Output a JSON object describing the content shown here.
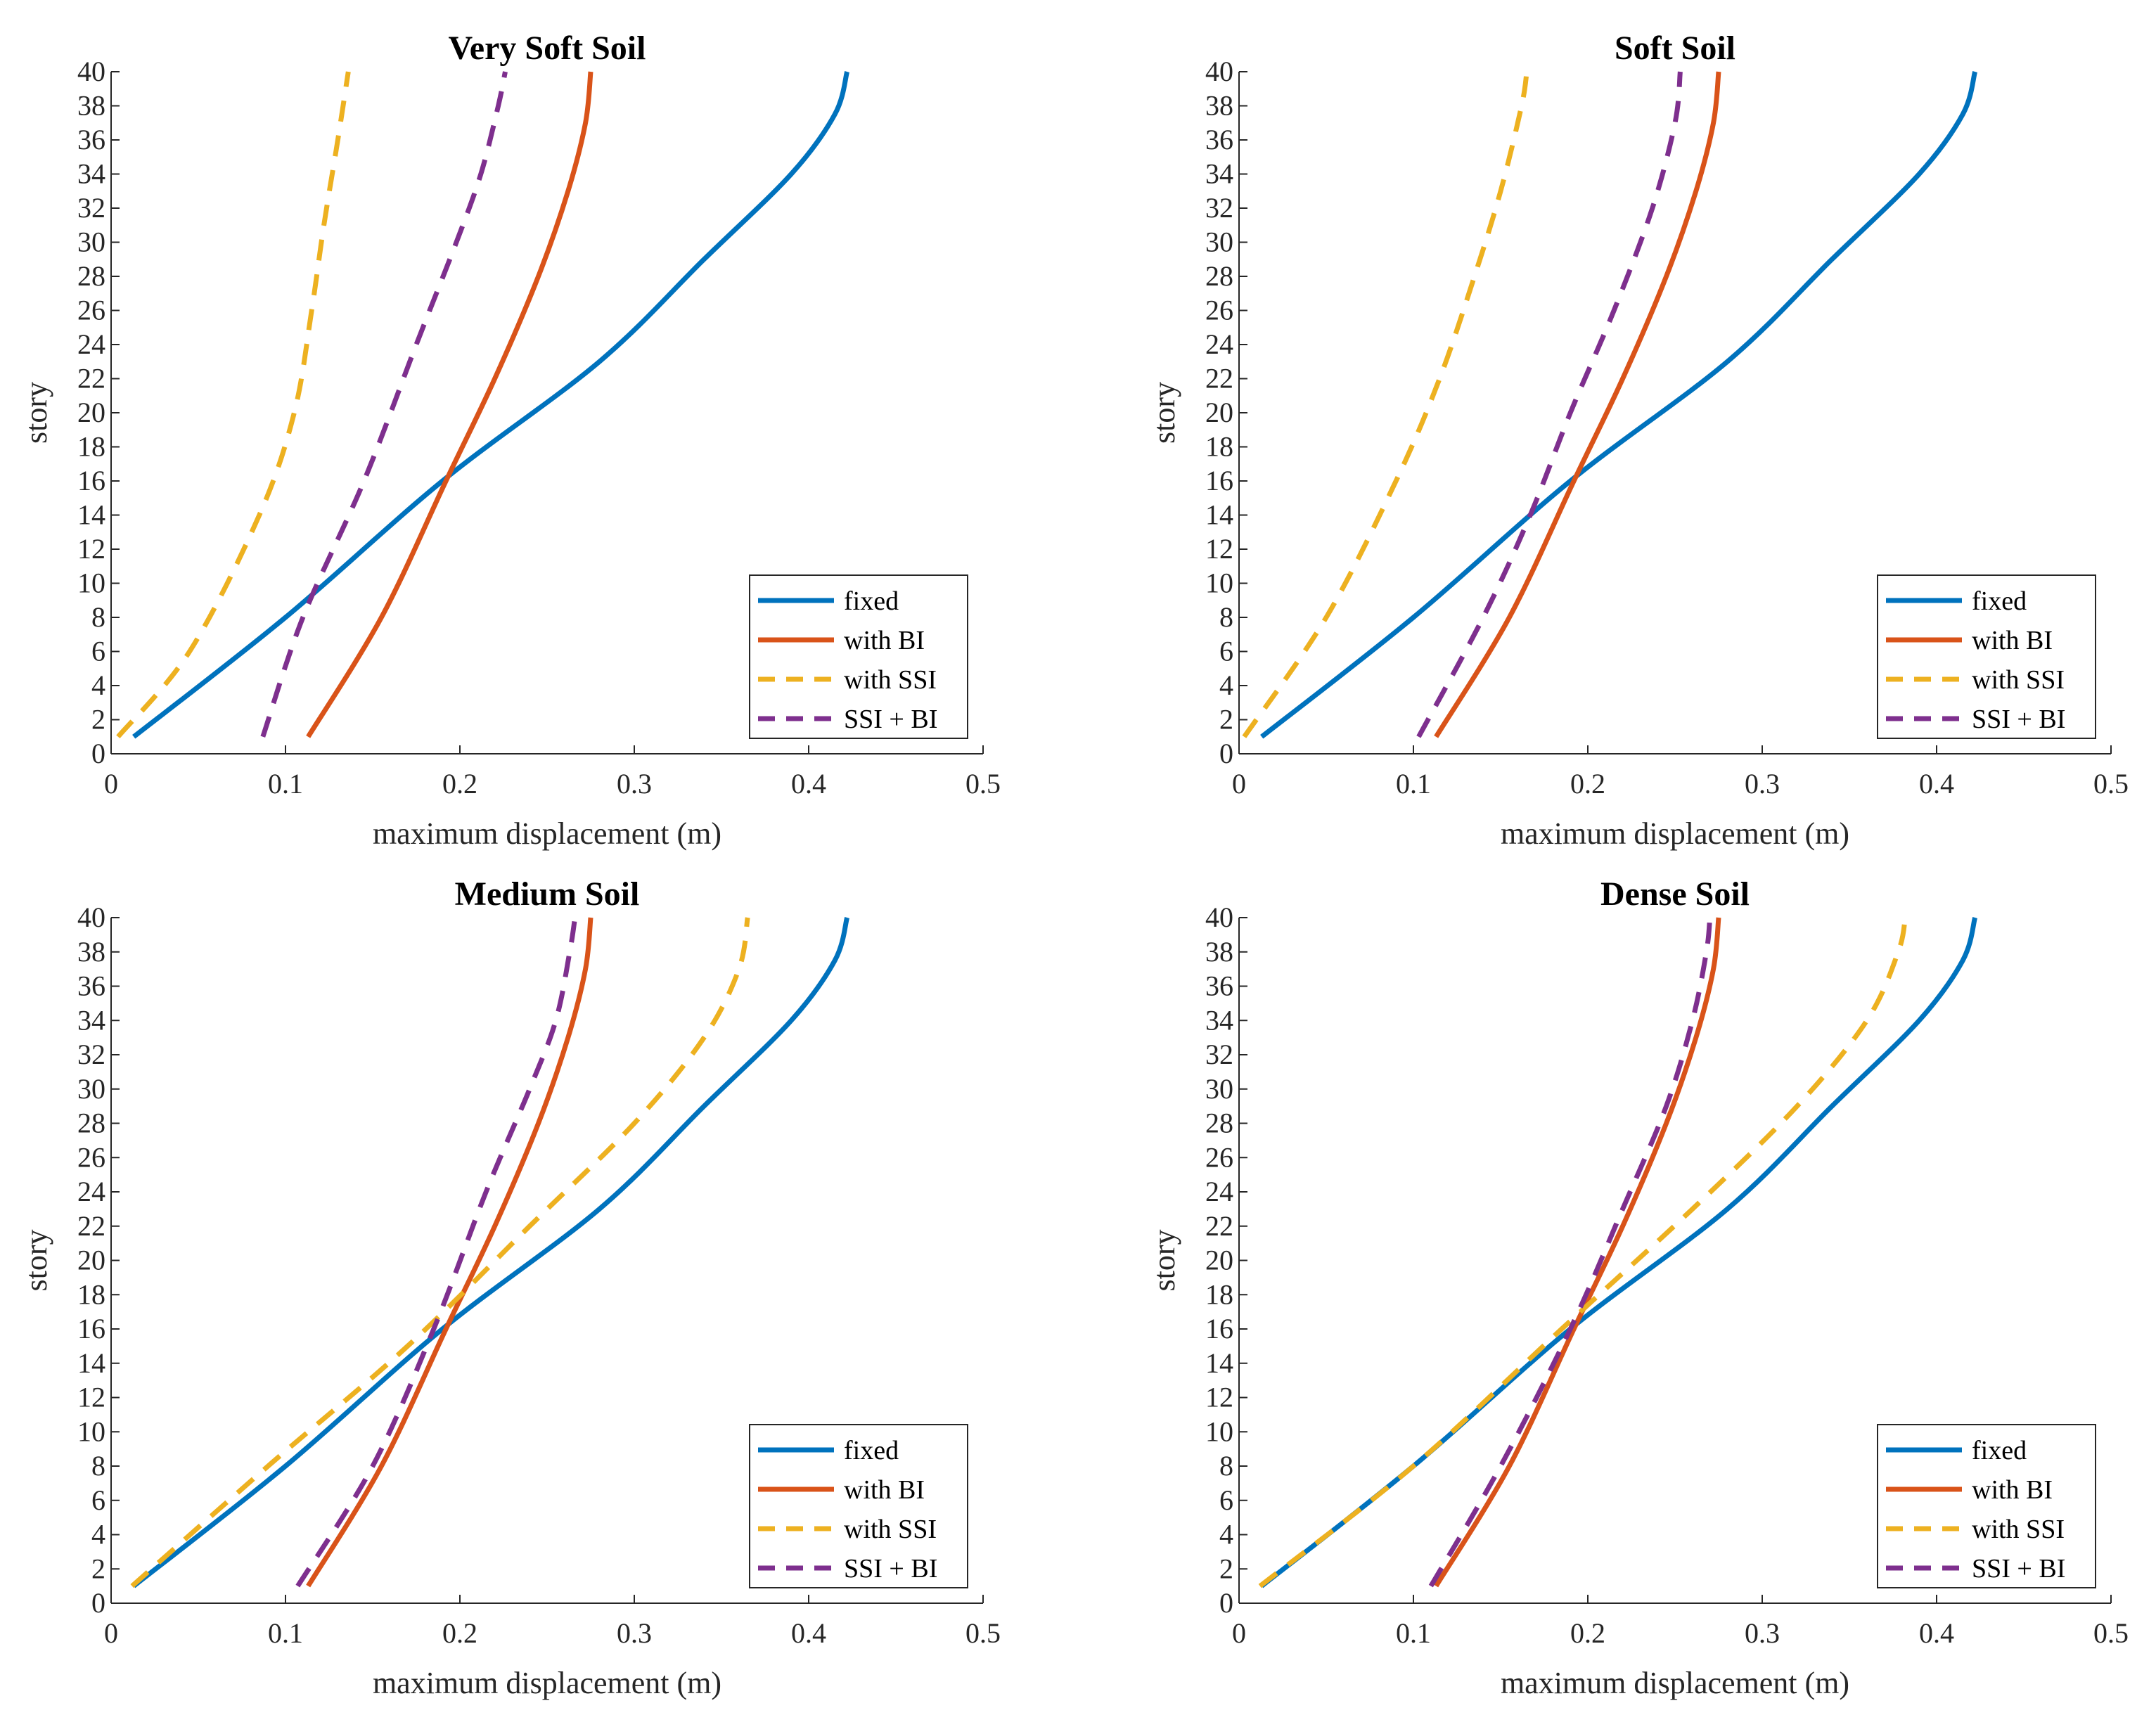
{
  "chart_data": [
    {
      "type": "line",
      "title": "Very Soft Soil",
      "xlabel": "maximum displacement (m)",
      "ylabel": "story",
      "xlim": [
        0,
        0.5
      ],
      "ylim": [
        0,
        40
      ],
      "xticks": [
        0,
        0.1,
        0.2,
        0.3,
        0.4,
        0.5
      ],
      "xtick_labels": [
        "0",
        "0.1",
        "0.2",
        "0.3",
        "0.4",
        "0.5"
      ],
      "yticks": [
        0,
        2,
        4,
        6,
        8,
        10,
        12,
        14,
        16,
        18,
        20,
        22,
        24,
        26,
        28,
        30,
        32,
        34,
        36,
        38,
        40
      ],
      "ytick_labels": [
        "0",
        "2",
        "4",
        "6",
        "8",
        "10",
        "12",
        "14",
        "16",
        "18",
        "20",
        "22",
        "24",
        "26",
        "28",
        "30",
        "32",
        "34",
        "36",
        "38",
        "40"
      ],
      "legend_position": "bottom-right",
      "series": [
        {
          "name": "fixed",
          "style": "solid",
          "color": "#0072BD",
          "x": [
            0.013,
            0.1,
            0.19,
            0.28,
            0.34,
            0.39,
            0.415,
            0.422
          ],
          "y": [
            1,
            8,
            16,
            23,
            29,
            34,
            37.5,
            40
          ]
        },
        {
          "name": "with BI",
          "style": "solid",
          "color": "#D95319",
          "x": [
            0.113,
            0.155,
            0.192,
            0.22,
            0.245,
            0.262,
            0.272,
            0.275
          ],
          "y": [
            1,
            8,
            16,
            22,
            28,
            33,
            37,
            40
          ]
        },
        {
          "name": "with SSI",
          "style": "dashed",
          "color": "#EDB120",
          "x": [
            0.004,
            0.045,
            0.085,
            0.105,
            0.115,
            0.122,
            0.13,
            0.136
          ],
          "y": [
            1,
            6,
            14,
            20,
            26,
            31,
            36,
            40
          ]
        },
        {
          "name": "SSI + BI",
          "style": "dashed",
          "color": "#7E2F8E",
          "x": [
            0.087,
            0.11,
            0.145,
            0.175,
            0.198,
            0.212,
            0.222,
            0.226
          ],
          "y": [
            1,
            8,
            16,
            24,
            30,
            34,
            38,
            40
          ]
        }
      ]
    },
    {
      "type": "line",
      "title": "Soft Soil",
      "xlabel": "maximum displacement (m)",
      "ylabel": "story",
      "xlim": [
        0,
        0.5
      ],
      "ylim": [
        0,
        40
      ],
      "xticks": [
        0,
        0.1,
        0.2,
        0.3,
        0.4,
        0.5
      ],
      "xtick_labels": [
        "0",
        "0.1",
        "0.2",
        "0.3",
        "0.4",
        "0.5"
      ],
      "yticks": [
        0,
        2,
        4,
        6,
        8,
        10,
        12,
        14,
        16,
        18,
        20,
        22,
        24,
        26,
        28,
        30,
        32,
        34,
        36,
        38,
        40
      ],
      "ytick_labels": [
        "0",
        "2",
        "4",
        "6",
        "8",
        "10",
        "12",
        "14",
        "16",
        "18",
        "20",
        "22",
        "24",
        "26",
        "28",
        "30",
        "32",
        "34",
        "36",
        "38",
        "40"
      ],
      "legend_position": "bottom-right",
      "series": [
        {
          "name": "fixed",
          "style": "solid",
          "color": "#0072BD",
          "x": [
            0.013,
            0.1,
            0.19,
            0.28,
            0.34,
            0.39,
            0.415,
            0.422
          ],
          "y": [
            1,
            8,
            16,
            23,
            29,
            34,
            37.5,
            40
          ]
        },
        {
          "name": "with BI",
          "style": "solid",
          "color": "#D95319",
          "x": [
            0.113,
            0.155,
            0.192,
            0.22,
            0.245,
            0.262,
            0.272,
            0.275
          ],
          "y": [
            1,
            8,
            16,
            22,
            28,
            33,
            37,
            40
          ]
        },
        {
          "name": "with SSI",
          "style": "dashed",
          "color": "#EDB120",
          "x": [
            0.003,
            0.05,
            0.09,
            0.115,
            0.135,
            0.15,
            0.162,
            0.165
          ],
          "y": [
            1,
            8,
            16,
            22,
            28,
            33,
            38,
            40
          ]
        },
        {
          "name": "SSI + BI",
          "style": "dashed",
          "color": "#7E2F8E",
          "x": [
            0.103,
            0.14,
            0.167,
            0.19,
            0.215,
            0.237,
            0.25,
            0.253
          ],
          "y": [
            1,
            8,
            14,
            20,
            26,
            32,
            37,
            40
          ]
        }
      ]
    },
    {
      "type": "line",
      "title": "Medium Soil",
      "xlabel": "maximum displacement (m)",
      "ylabel": "story",
      "xlim": [
        0,
        0.5
      ],
      "ylim": [
        0,
        40
      ],
      "xticks": [
        0,
        0.1,
        0.2,
        0.3,
        0.4,
        0.5
      ],
      "xtick_labels": [
        "0",
        "0.1",
        "0.2",
        "0.3",
        "0.4",
        "0.5"
      ],
      "yticks": [
        0,
        2,
        4,
        6,
        8,
        10,
        12,
        14,
        16,
        18,
        20,
        22,
        24,
        26,
        28,
        30,
        32,
        34,
        36,
        38,
        40
      ],
      "ytick_labels": [
        "0",
        "2",
        "4",
        "6",
        "8",
        "10",
        "12",
        "14",
        "16",
        "18",
        "20",
        "22",
        "24",
        "26",
        "28",
        "30",
        "32",
        "34",
        "36",
        "38",
        "40"
      ],
      "legend_position": "bottom-right",
      "series": [
        {
          "name": "fixed",
          "style": "solid",
          "color": "#0072BD",
          "x": [
            0.013,
            0.1,
            0.19,
            0.28,
            0.34,
            0.39,
            0.415,
            0.422
          ],
          "y": [
            1,
            8,
            16,
            23,
            29,
            34,
            37.5,
            40
          ]
        },
        {
          "name": "with BI",
          "style": "solid",
          "color": "#D95319",
          "x": [
            0.113,
            0.155,
            0.192,
            0.22,
            0.245,
            0.262,
            0.272,
            0.275
          ],
          "y": [
            1,
            8,
            16,
            22,
            28,
            33,
            37,
            40
          ]
        },
        {
          "name": "with SSI",
          "style": "dashed",
          "color": "#EDB120",
          "x": [
            0.012,
            0.09,
            0.17,
            0.24,
            0.3,
            0.34,
            0.36,
            0.365
          ],
          "y": [
            1,
            8,
            15,
            22,
            28,
            33,
            37,
            40
          ]
        },
        {
          "name": "SSI + BI",
          "style": "dashed",
          "color": "#7E2F8E",
          "x": [
            0.107,
            0.15,
            0.185,
            0.215,
            0.24,
            0.255,
            0.263,
            0.266
          ],
          "y": [
            1,
            8,
            16,
            24,
            30,
            34,
            38,
            40
          ]
        }
      ]
    },
    {
      "type": "line",
      "title": "Dense Soil",
      "xlabel": "maximum displacement (m)",
      "ylabel": "story",
      "xlim": [
        0,
        0.5
      ],
      "ylim": [
        0,
        40
      ],
      "xticks": [
        0,
        0.1,
        0.2,
        0.3,
        0.4,
        0.5
      ],
      "xtick_labels": [
        "0",
        "0.1",
        "0.2",
        "0.3",
        "0.4",
        "0.5"
      ],
      "yticks": [
        0,
        2,
        4,
        6,
        8,
        10,
        12,
        14,
        16,
        18,
        20,
        22,
        24,
        26,
        28,
        30,
        32,
        34,
        36,
        38,
        40
      ],
      "ytick_labels": [
        "0",
        "2",
        "4",
        "6",
        "8",
        "10",
        "12",
        "14",
        "16",
        "18",
        "20",
        "22",
        "24",
        "26",
        "28",
        "30",
        "32",
        "34",
        "36",
        "38",
        "40"
      ],
      "legend_position": "bottom-right",
      "series": [
        {
          "name": "fixed",
          "style": "solid",
          "color": "#0072BD",
          "x": [
            0.013,
            0.1,
            0.19,
            0.28,
            0.34,
            0.39,
            0.415,
            0.422
          ],
          "y": [
            1,
            8,
            16,
            23,
            29,
            34,
            37.5,
            40
          ]
        },
        {
          "name": "with BI",
          "style": "solid",
          "color": "#D95319",
          "x": [
            0.113,
            0.155,
            0.192,
            0.22,
            0.245,
            0.262,
            0.272,
            0.275
          ],
          "y": [
            1,
            8,
            16,
            22,
            28,
            33,
            37,
            40
          ]
        },
        {
          "name": "with SSI",
          "style": "dashed",
          "color": "#EDB120",
          "x": [
            0.012,
            0.1,
            0.185,
            0.26,
            0.32,
            0.36,
            0.378,
            0.382
          ],
          "y": [
            1,
            8,
            16,
            23,
            29,
            34,
            38,
            40
          ]
        },
        {
          "name": "SSI + BI",
          "style": "dashed",
          "color": "#7E2F8E",
          "x": [
            0.11,
            0.15,
            0.19,
            0.22,
            0.245,
            0.26,
            0.268,
            0.27
          ],
          "y": [
            1,
            8,
            16,
            23,
            29,
            34,
            38,
            40
          ]
        }
      ]
    }
  ]
}
